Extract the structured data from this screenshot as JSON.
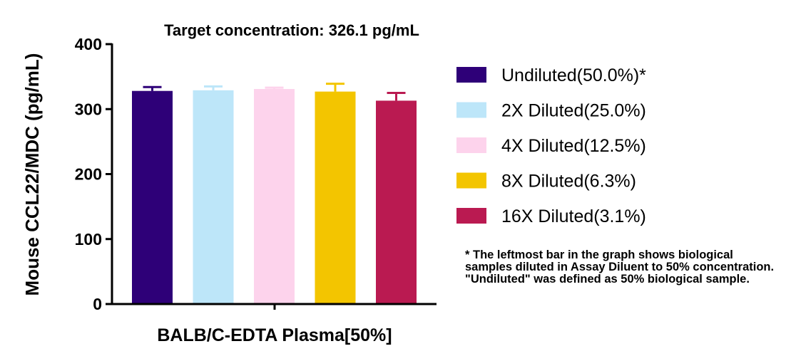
{
  "chart_data": {
    "type": "bar",
    "title": "Target concentration: 326.1 pg/mL",
    "xlabel": "BALB/C-EDTA Plasma[50%]",
    "ylabel": "Mouse CCL22/MDC (pg/mL)",
    "ylim": [
      0,
      400
    ],
    "yticks": [
      0,
      100,
      200,
      300,
      400
    ],
    "grid": false,
    "legend_position": "right",
    "series": [
      {
        "name": "Undiluted(50.0%)*",
        "value": 328,
        "error": 6,
        "color": "#2e0078"
      },
      {
        "name": "2X Diluted(25.0%)",
        "value": 329,
        "error": 6,
        "color": "#bde6f9"
      },
      {
        "name": "4X Diluted(12.5%)",
        "value": 331,
        "error": 2,
        "color": "#fdd3ec"
      },
      {
        "name": "8X Diluted(6.3%)",
        "value": 327,
        "error": 12,
        "color": "#f3c500"
      },
      {
        "name": "16X Diluted(3.1%)",
        "value": 313,
        "error": 12,
        "color": "#ba1a51"
      }
    ]
  },
  "footnote": "* The leftmost bar in the graph shows biological samples diluted in Assay Diluent to 50% concentration. \"Undiluted\" was defined as 50% biological sample."
}
